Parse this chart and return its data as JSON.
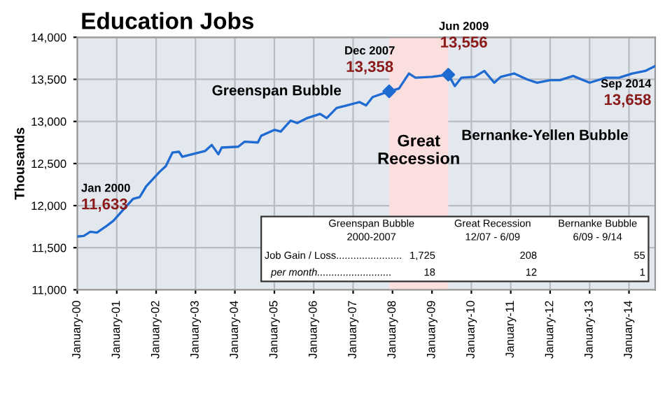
{
  "chart_data": {
    "type": "line",
    "title": "Education Jobs",
    "ylabel": "Thousands",
    "x": [
      "2000-01",
      "2000-03",
      "2000-05",
      "2000-07",
      "2000-10",
      "2000-12",
      "2001-03",
      "2001-06",
      "2001-08",
      "2001-10",
      "2002-02",
      "2002-04",
      "2002-06",
      "2002-08",
      "2002-09",
      "2003-01",
      "2003-04",
      "2003-06",
      "2003-08",
      "2003-09",
      "2004-02",
      "2004-04",
      "2004-08",
      "2004-09",
      "2005-01",
      "2005-03",
      "2005-06",
      "2005-08",
      "2005-11",
      "2006-03",
      "2006-05",
      "2006-08",
      "2006-11",
      "2007-03",
      "2007-05",
      "2007-07",
      "2007-12",
      "2008-03",
      "2008-06",
      "2008-08",
      "2009-01",
      "2009-06",
      "2009-08",
      "2009-10",
      "2010-02",
      "2010-05",
      "2010-08",
      "2010-10",
      "2011-02",
      "2011-06",
      "2011-09",
      "2012-01",
      "2012-04",
      "2012-08",
      "2013-01",
      "2013-06",
      "2013-10",
      "2014-02",
      "2014-06",
      "2014-09"
    ],
    "series": [
      {
        "color": "#1f6bd1",
        "values": [
          11633,
          11640,
          11690,
          11680,
          11760,
          11820,
          11950,
          12080,
          12100,
          12230,
          12400,
          12470,
          12630,
          12640,
          12580,
          12620,
          12650,
          12720,
          12610,
          12690,
          12700,
          12760,
          12750,
          12830,
          12900,
          12880,
          13010,
          12980,
          13040,
          13090,
          13040,
          13160,
          13190,
          13230,
          13190,
          13290,
          13358,
          13390,
          13570,
          13520,
          13530,
          13556,
          13420,
          13520,
          13530,
          13600,
          13460,
          13530,
          13570,
          13500,
          13460,
          13490,
          13490,
          13540,
          13460,
          13520,
          13520,
          13570,
          13600,
          13658
        ]
      },
      {
        "type": "scatter",
        "marker": "diamond",
        "color": "#1f6bd1",
        "x": [
          "2007-12",
          "2009-06"
        ],
        "values": [
          13358,
          13556
        ]
      }
    ],
    "xlim": [
      "2000-01",
      "2014-09"
    ],
    "xticks": [
      {
        "value": "2000-01",
        "label": "January-00"
      },
      {
        "value": "2001-01",
        "label": "January-01"
      },
      {
        "value": "2002-01",
        "label": "January-02"
      },
      {
        "value": "2003-01",
        "label": "January-03"
      },
      {
        "value": "2004-01",
        "label": "January-04"
      },
      {
        "value": "2005-01",
        "label": "January-05"
      },
      {
        "value": "2006-01",
        "label": "January-06"
      },
      {
        "value": "2007-01",
        "label": "January-07"
      },
      {
        "value": "2008-01",
        "label": "January-08"
      },
      {
        "value": "2009-01",
        "label": "January-09"
      },
      {
        "value": "2010-01",
        "label": "January-10"
      },
      {
        "value": "2011-01",
        "label": "January-11"
      },
      {
        "value": "2012-01",
        "label": "January-12"
      },
      {
        "value": "2013-01",
        "label": "January-13"
      },
      {
        "value": "2014-01",
        "label": "January-14"
      }
    ],
    "ylim": [
      11000,
      14000
    ],
    "yticks": [
      {
        "value": 11000,
        "label": "11,000"
      },
      {
        "value": 11500,
        "label": "11,500"
      },
      {
        "value": 12000,
        "label": "12,000"
      },
      {
        "value": 12500,
        "label": "12,500"
      },
      {
        "value": 13000,
        "label": "13,000"
      },
      {
        "value": 13500,
        "label": "13,500"
      },
      {
        "value": 14000,
        "label": "14,000"
      }
    ],
    "grid": true,
    "bands": [
      {
        "axis": "x",
        "from": "2007-12",
        "to": "2009-06",
        "label": "Great\nRecession",
        "color": "#fbdede"
      }
    ],
    "annotations": [
      {
        "text": "Jan 2000\n11,633",
        "x": "2000-01",
        "y": 11633
      },
      {
        "text": "Dec 2007\n13,358",
        "x": "2007-12",
        "y": 13358
      },
      {
        "text": "Jun 2009\n13,556",
        "x": "2009-06",
        "y": 13556
      },
      {
        "text": "Sep 2014\n13,658",
        "x": "2014-09",
        "y": 13658
      },
      "Greenspan Bubble",
      "Bernanke-Yellen Bubble",
      "Greenspan Bubble",
      "Great Recession",
      "Bernanke Bubble",
      "2000-2007",
      "12/07 - 6/09",
      "6/09 - 9/14",
      "Job Gain / Loss.......................",
      "1,725",
      "208",
      "55",
      "per month..........................",
      "18",
      "12",
      "1"
    ]
  }
}
